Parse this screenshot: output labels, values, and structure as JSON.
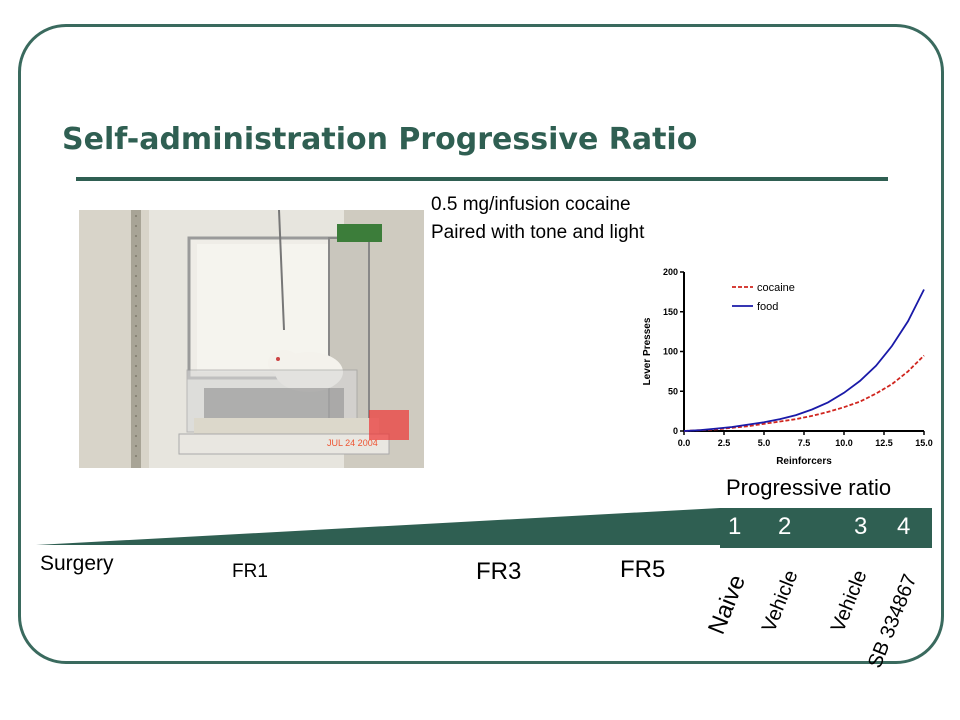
{
  "slide": {
    "title": "Self-administration Progressive Ratio",
    "condition_lines": [
      "0.5 mg/infusion cocaine",
      "Paired with tone and light"
    ],
    "photo": {
      "date_stamp": "JUL 24 2004"
    }
  },
  "chart_data": {
    "type": "line",
    "title": "",
    "xlabel": "Reinforcers",
    "ylabel": "Lever Presses",
    "xlim": [
      0.0,
      15.0
    ],
    "ylim": [
      0,
      200
    ],
    "x_ticks": [
      "0.0",
      "2.5",
      "5.0",
      "7.5",
      "10.0",
      "12.5",
      "15.0"
    ],
    "y_ticks": [
      "0",
      "50",
      "100",
      "150",
      "200"
    ],
    "legend_position": "top-left",
    "grid": false,
    "x": [
      0,
      1,
      2,
      3,
      4,
      5,
      6,
      7,
      8,
      9,
      10,
      11,
      12,
      13,
      14,
      15
    ],
    "series": [
      {
        "name": "cocaine",
        "color": "#d0261f",
        "style": "dashed",
        "values": [
          0,
          1,
          2,
          4,
          6,
          9,
          12,
          15,
          19,
          24,
          30,
          37,
          47,
          59,
          75,
          95
        ]
      },
      {
        "name": "food",
        "color": "#1a1aa8",
        "style": "solid",
        "values": [
          0,
          1,
          3,
          5,
          8,
          11,
          15,
          20,
          27,
          36,
          48,
          63,
          82,
          107,
          138,
          178
        ]
      }
    ]
  },
  "timeline": {
    "label": "Progressive ratio",
    "session_numbers": [
      "1",
      "2",
      "3",
      "4"
    ],
    "phases": [
      "Surgery",
      "FR1",
      "FR3",
      "FR5"
    ],
    "sessions": [
      "Naive",
      "Vehicle",
      "Vehicle",
      "SB 334867"
    ],
    "bar_color": "#2f5f52"
  }
}
